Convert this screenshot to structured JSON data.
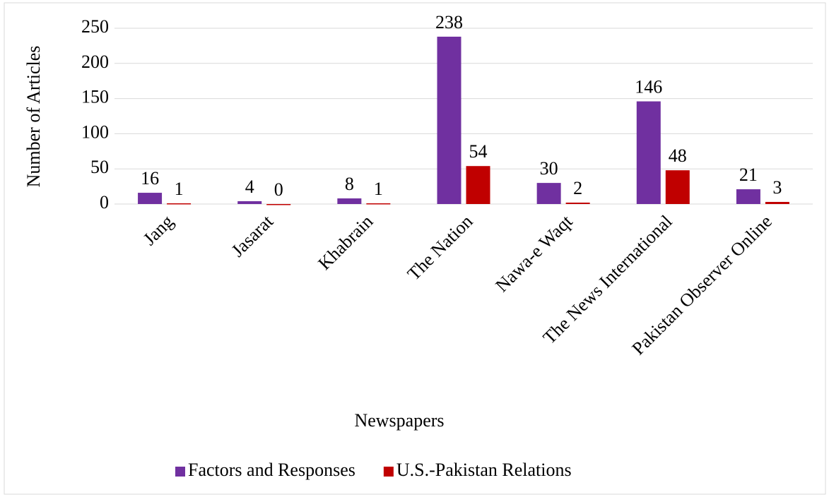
{
  "chart_data": {
    "type": "bar",
    "xlabel": "Newspapers",
    "ylabel": "Number of Articles",
    "categories": [
      "Jang",
      "Jasarat",
      "Khabrain",
      "The Nation",
      "Nawa-e Waqt",
      "The News International",
      "Pakistan Observer Online"
    ],
    "series": [
      {
        "name": "Factors and Responses",
        "color": "#7030a0",
        "values": [
          16,
          4,
          8,
          238,
          30,
          146,
          21
        ]
      },
      {
        "name": "U.S.-Pakistan Relations",
        "color": "#c00000",
        "values": [
          1,
          0,
          1,
          54,
          2,
          48,
          3
        ]
      }
    ],
    "ylim": [
      0,
      250
    ],
    "yticks": [
      0,
      50,
      100,
      150,
      200,
      250
    ],
    "grid": true,
    "legend": "bottom"
  }
}
